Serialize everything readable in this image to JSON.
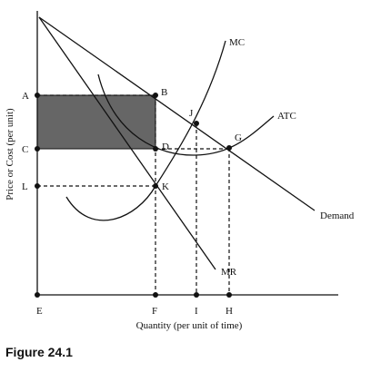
{
  "figure": {
    "caption": "Figure 24.1",
    "x_axis_label": "Quantity (per unit of time)",
    "y_axis_label": "Price or Cost (per unit)"
  },
  "curves": {
    "mc": "MC",
    "atc": "ATC",
    "demand": "Demand",
    "mr": "MR"
  },
  "points": {
    "A": "A",
    "B": "B",
    "C": "C",
    "D": "D",
    "E": "E",
    "F": "F",
    "G": "G",
    "H": "H",
    "I": "I",
    "J": "J",
    "K": "K",
    "L": "L"
  },
  "colors": {
    "line": "#111111",
    "shaded_rect": "#666666"
  }
}
